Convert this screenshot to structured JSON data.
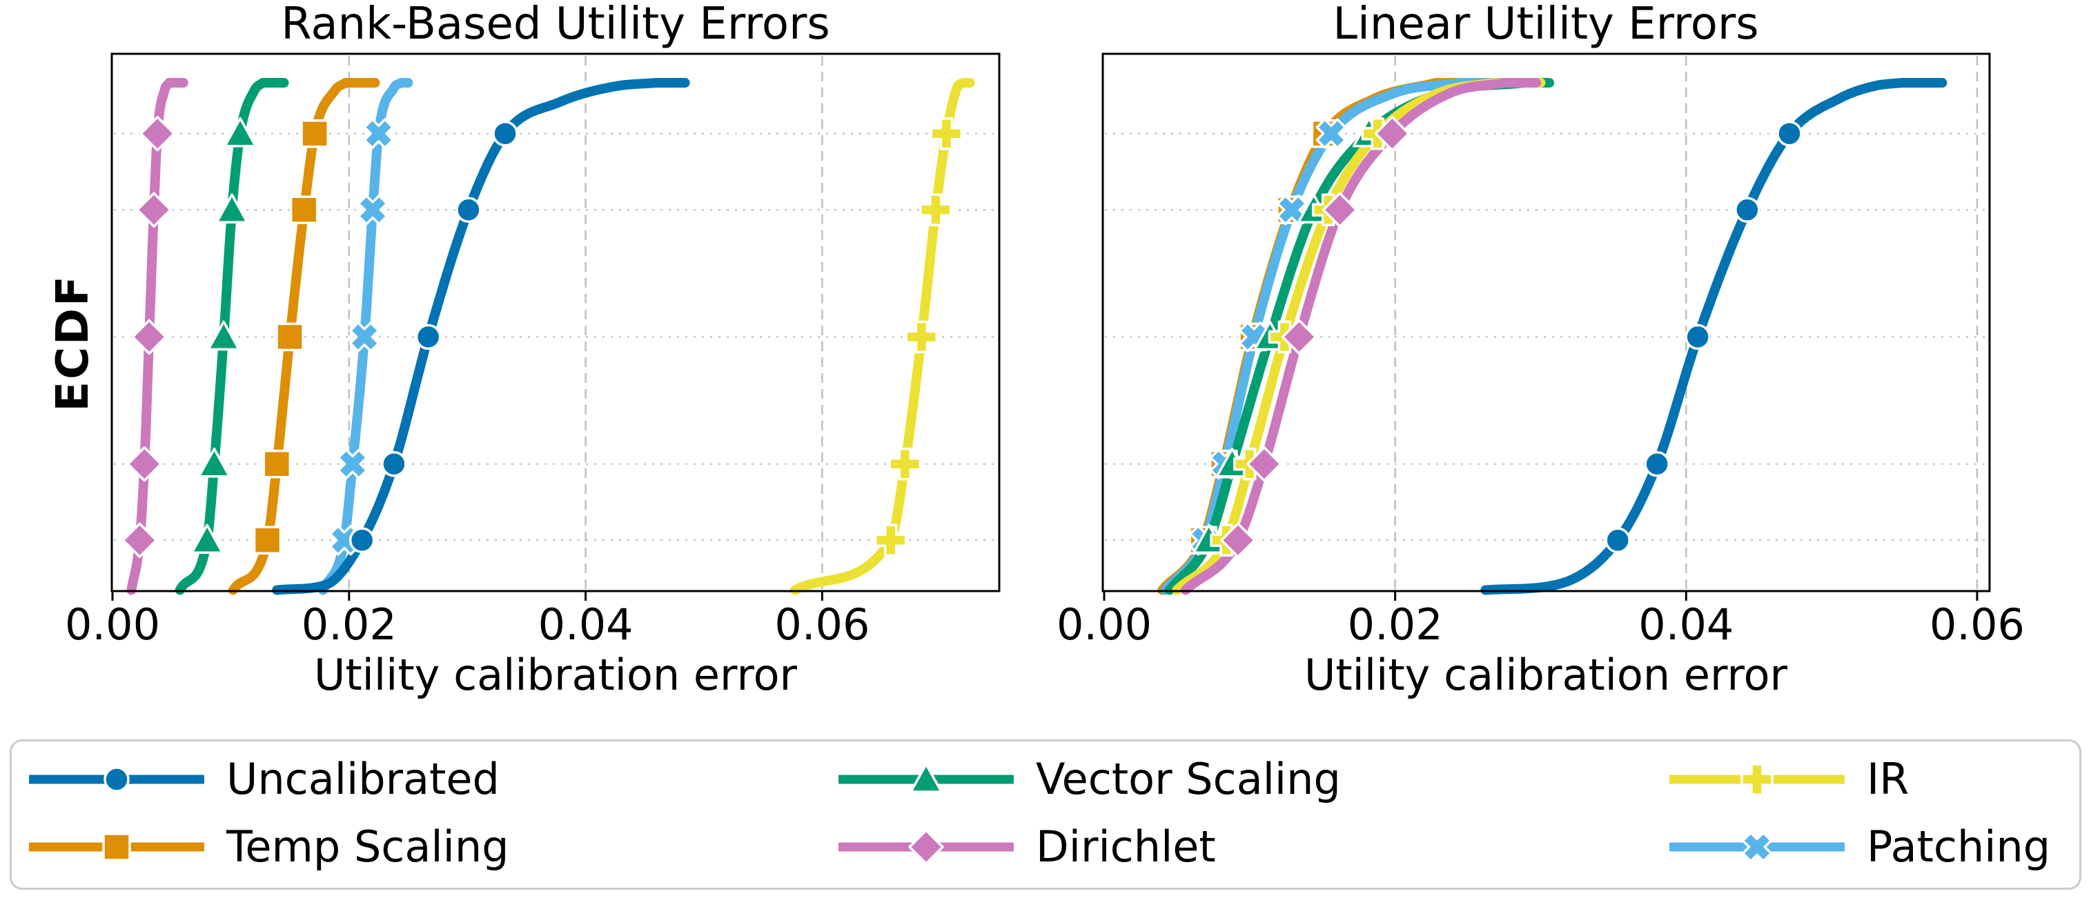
{
  "chart_data": [
    {
      "type": "line",
      "variant": "ecdf",
      "title": "Rank-Based Utility Errors",
      "xlabel": "Utility calibration error",
      "ylabel": "ECDF",
      "xlim": [
        0,
        0.075
      ],
      "ylim": [
        0,
        1.05
      ],
      "x_ticks": {
        "values": [
          0,
          0.02,
          0.04,
          0.06
        ],
        "labels": [
          "0.00",
          "0.02",
          "0.04",
          "0.06"
        ]
      },
      "grid": {
        "vertical_dashed_at": [
          0.02,
          0.04,
          0.06
        ],
        "horizontal_dotted_at": [
          0.1,
          0.25,
          0.5,
          0.75,
          0.9
        ]
      },
      "marker_quantiles": [
        0.1,
        0.25,
        0.5,
        0.75,
        0.9
      ],
      "series": [
        {
          "name": "Temp Scaling",
          "color": "#de8f05",
          "marker": "square",
          "quantile_points": [
            [
              0.0102,
              0.002
            ],
            [
              0.0131,
              0.1
            ],
            [
              0.0139,
              0.25
            ],
            [
              0.015,
              0.5
            ],
            [
              0.0162,
              0.75
            ],
            [
              0.0171,
              0.9
            ],
            [
              0.0188,
              0.985
            ],
            [
              0.0197,
              1
            ]
          ],
          "flat_to": 0.0222
        },
        {
          "name": "Patching",
          "color": "#56b4e9",
          "marker": "x",
          "quantile_points": [
            [
              0.0178,
              0.002
            ],
            [
              0.0196,
              0.1
            ],
            [
              0.0203,
              0.25
            ],
            [
              0.0213,
              0.5
            ],
            [
              0.022,
              0.75
            ],
            [
              0.0225,
              0.9
            ],
            [
              0.0238,
              0.99
            ],
            [
              0.0244,
              1
            ]
          ],
          "flat_to": 0.025
        },
        {
          "name": "Vector Scaling",
          "color": "#029e73",
          "marker": "triangle",
          "quantile_points": [
            [
              0.0057,
              0.002
            ],
            [
              0.008,
              0.1
            ],
            [
              0.0086,
              0.25
            ],
            [
              0.0094,
              0.5
            ],
            [
              0.0101,
              0.75
            ],
            [
              0.0108,
              0.9
            ],
            [
              0.012,
              0.985
            ],
            [
              0.0127,
              1
            ]
          ],
          "flat_to": 0.0145
        },
        {
          "name": "IR",
          "color": "#ece133",
          "marker": "plus",
          "quantile_points": [
            [
              0.0577,
              0.002
            ],
            [
              0.0658,
              0.1
            ],
            [
              0.067,
              0.25
            ],
            [
              0.0684,
              0.5
            ],
            [
              0.0696,
              0.75
            ],
            [
              0.0705,
              0.9
            ],
            [
              0.0714,
              0.99
            ],
            [
              0.0719,
              1
            ]
          ],
          "flat_to": 0.0725
        },
        {
          "name": "Dirichlet",
          "color": "#cc78bc",
          "marker": "diamond",
          "quantile_points": [
            [
              0.0016,
              0.002
            ],
            [
              0.0023,
              0.1
            ],
            [
              0.0027,
              0.25
            ],
            [
              0.0031,
              0.5
            ],
            [
              0.0035,
              0.75
            ],
            [
              0.0038,
              0.9
            ],
            [
              0.0044,
              0.985
            ],
            [
              0.0048,
              1
            ]
          ],
          "flat_to": 0.006
        },
        {
          "name": "Uncalibrated",
          "color": "#0173b2",
          "marker": "circle",
          "quantile_points": [
            [
              0.0139,
              0.002
            ],
            [
              0.018,
              0.012
            ],
            [
              0.0211,
              0.1
            ],
            [
              0.0238,
              0.25
            ],
            [
              0.0267,
              0.5
            ],
            [
              0.0301,
              0.75
            ],
            [
              0.0332,
              0.9
            ],
            [
              0.0378,
              0.962
            ],
            [
              0.0425,
              0.993
            ],
            [
              0.046,
              1
            ]
          ],
          "flat_to": 0.0484
        }
      ]
    },
    {
      "type": "line",
      "variant": "ecdf",
      "title": "Linear Utility Errors",
      "xlabel": "Utility calibration error",
      "ylabel": "",
      "xlim": [
        0,
        0.061
      ],
      "ylim": [
        0,
        1.05
      ],
      "x_ticks": {
        "values": [
          0,
          0.02,
          0.04,
          0.06
        ],
        "labels": [
          "0.00",
          "0.02",
          "0.04",
          "0.06"
        ]
      },
      "grid": {
        "vertical_dashed_at": [
          0.02,
          0.04,
          0.06
        ],
        "horizontal_dotted_at": [
          0.1,
          0.25,
          0.5,
          0.75,
          0.9
        ]
      },
      "marker_quantiles": [
        0.1,
        0.25,
        0.5,
        0.75,
        0.9
      ],
      "series": [
        {
          "name": "Temp Scaling",
          "color": "#de8f05",
          "marker": "square",
          "quantile_points": [
            [
              0.004,
              0.002
            ],
            [
              0.0068,
              0.1
            ],
            [
              0.0082,
              0.25
            ],
            [
              0.0102,
              0.5
            ],
            [
              0.0128,
              0.75
            ],
            [
              0.0152,
              0.9
            ],
            [
              0.0185,
              0.968
            ],
            [
              0.0228,
              1
            ]
          ],
          "flat_to": 0.0262
        },
        {
          "name": "Patching",
          "color": "#56b4e9",
          "marker": "x",
          "quantile_points": [
            [
              0.0042,
              0.002
            ],
            [
              0.0069,
              0.1
            ],
            [
              0.0083,
              0.25
            ],
            [
              0.0103,
              0.5
            ],
            [
              0.0129,
              0.75
            ],
            [
              0.0156,
              0.9
            ],
            [
              0.0198,
              0.978
            ],
            [
              0.0245,
              1
            ]
          ],
          "flat_to": 0.0272
        },
        {
          "name": "Vector Scaling",
          "color": "#029e73",
          "marker": "triangle",
          "quantile_points": [
            [
              0.0045,
              0.002
            ],
            [
              0.0072,
              0.1
            ],
            [
              0.0088,
              0.25
            ],
            [
              0.0114,
              0.5
            ],
            [
              0.0144,
              0.75
            ],
            [
              0.0182,
              0.9
            ],
            [
              0.0232,
              0.98
            ],
            [
              0.0288,
              1
            ]
          ],
          "flat_to": 0.0306
        },
        {
          "name": "IR",
          "color": "#ece133",
          "marker": "plus",
          "quantile_points": [
            [
              0.005,
              0.002
            ],
            [
              0.0084,
              0.1
            ],
            [
              0.01,
              0.25
            ],
            [
              0.0124,
              0.5
            ],
            [
              0.0154,
              0.75
            ],
            [
              0.0188,
              0.9
            ],
            [
              0.023,
              0.98
            ],
            [
              0.0268,
              1
            ]
          ],
          "flat_to": 0.03
        },
        {
          "name": "Dirichlet",
          "color": "#cc78bc",
          "marker": "diamond",
          "quantile_points": [
            [
              0.0056,
              0.002
            ],
            [
              0.0092,
              0.1
            ],
            [
              0.011,
              0.25
            ],
            [
              0.0134,
              0.5
            ],
            [
              0.0162,
              0.75
            ],
            [
              0.0198,
              0.9
            ],
            [
              0.0238,
              0.98
            ],
            [
              0.0275,
              1
            ]
          ],
          "flat_to": 0.0297
        },
        {
          "name": "Uncalibrated",
          "color": "#0173b2",
          "marker": "circle",
          "quantile_points": [
            [
              0.0262,
              0.002
            ],
            [
              0.031,
              0.012
            ],
            [
              0.0353,
              0.1
            ],
            [
              0.038,
              0.25
            ],
            [
              0.0408,
              0.5
            ],
            [
              0.0442,
              0.75
            ],
            [
              0.0471,
              0.9
            ],
            [
              0.0506,
              0.97
            ],
            [
              0.053,
              0.994
            ],
            [
              0.0548,
              1
            ]
          ],
          "flat_to": 0.0576
        }
      ]
    }
  ],
  "legend": {
    "position": "bottom",
    "columns": [
      [
        {
          "label": "Uncalibrated",
          "color": "#0173b2",
          "marker": "circle"
        },
        {
          "label": "Temp Scaling",
          "color": "#de8f05",
          "marker": "square"
        }
      ],
      [
        {
          "label": "Vector Scaling",
          "color": "#029e73",
          "marker": "triangle"
        },
        {
          "label": "Dirichlet",
          "color": "#cc78bc",
          "marker": "diamond"
        }
      ],
      [
        {
          "label": "IR",
          "color": "#ece133",
          "marker": "plus"
        },
        {
          "label": "Patching",
          "color": "#56b4e9",
          "marker": "x"
        }
      ]
    ]
  },
  "style": {
    "grid_color_dotted": "#c8c8c8",
    "grid_color_dashed": "#bebebe",
    "spine_color": "#000000",
    "marker_edge_color": "#ffffff"
  }
}
